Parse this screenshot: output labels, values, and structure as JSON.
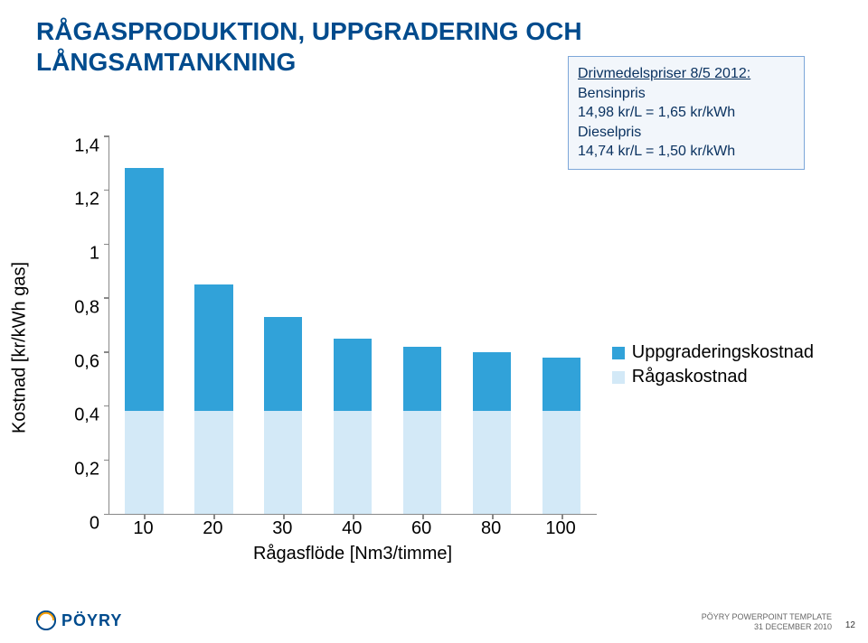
{
  "title_line1": "RÅGASPRODUKTION, UPPGRADERING OCH",
  "title_line2": "LÅNGSAMTANKNING",
  "title_color": "#004b8d",
  "title_fontsize": 28,
  "infobox": {
    "heading": "Drivmedelspriser 8/5 2012:",
    "line1_label": "Bensinpris",
    "line1_value": "14,98 kr/L = 1,65 kr/kWh",
    "line2_label": "Dieselpris",
    "line2_value": "14,74 kr/L = 1,50 kr/kWh",
    "border_color": "#7da7d9",
    "bg_color": "#f2f6fb",
    "text_color": "#0a3260",
    "fontsize": 16
  },
  "chart": {
    "type": "stacked-bar",
    "y_label": "Kostnad [kr/kWh gas]",
    "x_label": "Rågasflöde [Nm3/timme]",
    "label_fontsize": 20,
    "tick_fontsize": 20,
    "categories": [
      "10",
      "20",
      "30",
      "40",
      "60",
      "80",
      "100"
    ],
    "series": [
      {
        "name": "Rågaskostnad",
        "color": "#d3e9f7",
        "values": [
          0.38,
          0.38,
          0.38,
          0.38,
          0.38,
          0.38,
          0.38
        ]
      },
      {
        "name": "Uppgraderingskostnad",
        "color": "#31a2d9",
        "values": [
          0.9,
          0.47,
          0.35,
          0.27,
          0.24,
          0.22,
          0.2
        ]
      }
    ],
    "y_ticks": [
      "0",
      "0,2",
      "0,4",
      "0,6",
      "0,8",
      "1",
      "1,2",
      "1,4"
    ],
    "y_tick_values": [
      0,
      0.2,
      0.4,
      0.6,
      0.8,
      1.0,
      1.2,
      1.4
    ],
    "ylim": [
      0,
      1.4
    ],
    "bar_width_ratio": 0.55,
    "axis_color": "#888888",
    "background_color": "#ffffff"
  },
  "legend": {
    "items": [
      {
        "label": "Uppgraderingskostnad",
        "color": "#31a2d9"
      },
      {
        "label": "Rågaskostnad",
        "color": "#d3e9f7"
      }
    ],
    "fontsize": 20
  },
  "footer": {
    "line1": "PÖYRY POWERPOINT TEMPLATE",
    "line2": "31 DECEMBER 2010",
    "page": "12",
    "brand": "PÖYRY",
    "brand_color": "#004b8d",
    "accent_color": "#f59c00"
  }
}
